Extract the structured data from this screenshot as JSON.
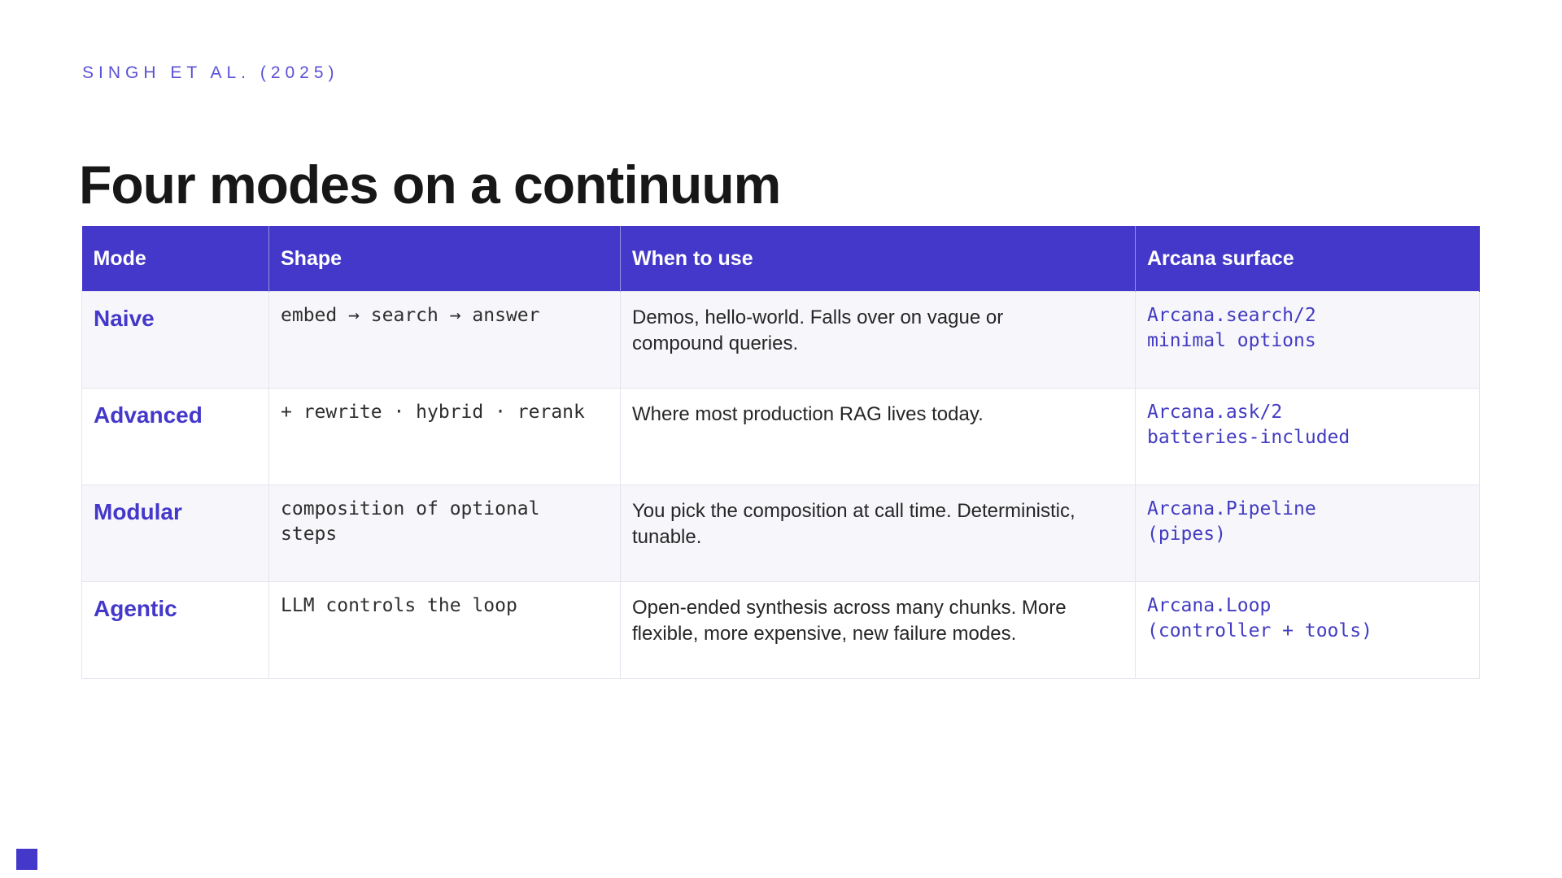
{
  "colors": {
    "accent": "#4438CA",
    "accent_light": "#5A50D6",
    "accent_code": "#423BC2",
    "row_alt_background": "#f7f7fb",
    "grid_border": "#e4e4ee"
  },
  "eyebrow": "SINGH ET AL. (2025)",
  "title": "Four modes on a continuum",
  "table": {
    "columns": [
      {
        "label": "Mode"
      },
      {
        "label": "Shape"
      },
      {
        "label": "When to use"
      },
      {
        "label": "Arcana surface"
      }
    ],
    "rows": [
      {
        "mode": "Naive",
        "shape": "embed → search → answer",
        "when": "Demos, hello-world. Falls over on vague or\ncompound queries.",
        "surface": "Arcana.search/2\nminimal options"
      },
      {
        "mode": "Advanced",
        "shape": "+ rewrite · hybrid · rerank",
        "when": "Where most production RAG lives today.",
        "surface": "Arcana.ask/2\nbatteries-included"
      },
      {
        "mode": "Modular",
        "shape": "composition of optional\nsteps",
        "when": "You pick the composition at call time. Deterministic,\ntunable.",
        "surface": "Arcana.Pipeline\n(pipes)"
      },
      {
        "mode": "Agentic",
        "shape": "LLM controls the loop",
        "when": "Open-ended synthesis across many chunks. More\nflexible, more expensive, new failure modes.",
        "surface": "Arcana.Loop\n(controller + tools)"
      }
    ]
  }
}
